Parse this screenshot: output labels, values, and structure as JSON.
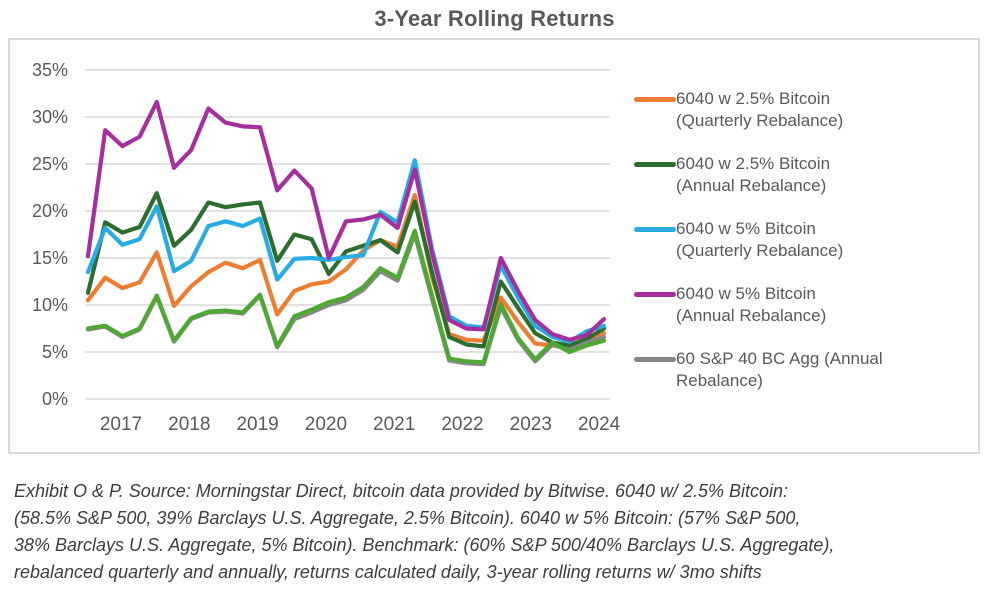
{
  "title": "3-Year Rolling Returns",
  "footer": {
    "lines": [
      "Exhibit O & P. Source: Morningstar Direct, bitcoin data provided by Bitwise. 6040 w/ 2.5% Bitcoin:",
      "(58.5% S&P 500, 39% Barclays U.S. Aggregate, 2.5% Bitcoin). 6040 w 5% Bitcoin: (57% S&P 500,",
      "38% Barclays U.S. Aggregate, 5% Bitcoin). Benchmark: (60% S&P 500/40% Barclays U.S. Aggregate),",
      "rebalanced quarterly and annually, returns calculated daily, 3-year rolling returns w/ 3mo shifts"
    ]
  },
  "chart_data": {
    "type": "line",
    "title": "3-Year Rolling Returns",
    "x_axis": {
      "labels": [
        "2017",
        "2018",
        "2019",
        "2020",
        "2021",
        "2022",
        "2023",
        "2024"
      ]
    },
    "y_axis": {
      "ticks": [
        "0%",
        "5%",
        "10%",
        "15%",
        "20%",
        "25%",
        "30%",
        "35%"
      ],
      "min": 0,
      "max": 35,
      "step": 5,
      "unit": "%"
    },
    "grid": true,
    "legend_position": "right",
    "points_per_year": 4,
    "note": "quarterly (3-month shift) rolling 3-year return observations, 2017 through mid-2024",
    "series": [
      {
        "name": "6040 w 2.5% Bitcoin (Quarterly Rebalance)",
        "color": "#ED7D31",
        "values": [
          10.5,
          12.9,
          11.8,
          12.4,
          15.6,
          9.9,
          12.0,
          13.5,
          14.5,
          13.9,
          14.8,
          9.0,
          11.5,
          12.2,
          12.5,
          13.8,
          15.8,
          16.9,
          16.2,
          21.7,
          13.0,
          6.9,
          6.3,
          6.2,
          10.8,
          8.2,
          5.9,
          5.7,
          5.5,
          6.2,
          7.0
        ]
      },
      {
        "name": "6040 w 2.5% Bitcoin (Annual Rebalance)",
        "color": "#2D6E2F",
        "values": [
          11.3,
          18.8,
          17.7,
          18.3,
          21.9,
          16.3,
          18.0,
          20.9,
          20.4,
          20.7,
          20.9,
          14.7,
          17.5,
          17.0,
          13.3,
          15.7,
          16.3,
          16.9,
          15.6,
          21.0,
          13.5,
          6.6,
          5.8,
          5.6,
          12.5,
          9.7,
          7.0,
          6.0,
          5.7,
          6.4,
          7.5
        ]
      },
      {
        "name": "6040 w 5% Bitcoin (Quarterly Rebalance)",
        "color": "#29ABE2",
        "values": [
          13.5,
          18.2,
          16.4,
          17.0,
          20.5,
          13.6,
          14.7,
          18.4,
          18.9,
          18.4,
          19.2,
          12.7,
          14.9,
          15.0,
          14.8,
          15.1,
          15.3,
          19.9,
          18.8,
          25.4,
          16.0,
          8.8,
          7.8,
          7.6,
          14.2,
          10.8,
          7.8,
          6.6,
          6.1,
          7.2,
          7.8
        ]
      },
      {
        "name": "6040 w 5% Bitcoin (Annual Rebalance)",
        "color": "#A42F9D",
        "values": [
          15.2,
          28.6,
          26.9,
          27.9,
          31.6,
          24.6,
          26.5,
          30.9,
          29.4,
          29.0,
          28.9,
          22.2,
          24.3,
          22.4,
          15.0,
          18.9,
          19.1,
          19.6,
          18.2,
          24.4,
          15.5,
          8.4,
          7.5,
          7.4,
          15.0,
          11.5,
          8.4,
          6.9,
          6.3,
          6.8,
          8.5
        ]
      },
      {
        "name": "60 S&P 40 BC Agg (Annual Rebalance)",
        "color": "#878787",
        "values": [
          7.4,
          7.7,
          6.6,
          7.4,
          10.9,
          6.1,
          8.5,
          9.2,
          9.3,
          9.1,
          11.0,
          5.5,
          8.5,
          9.2,
          10.0,
          10.5,
          11.6,
          13.6,
          12.6,
          17.5,
          10.7,
          4.1,
          3.8,
          3.7,
          9.8,
          6.3,
          4.0,
          5.8,
          5.2,
          6.0,
          6.6
        ]
      },
      {
        "name": "60 S&P 40 BC Agg (unlabeled green line)",
        "color": "#50A834",
        "values": [
          7.5,
          7.8,
          6.7,
          7.5,
          11.0,
          6.2,
          8.6,
          9.3,
          9.4,
          9.2,
          11.1,
          5.6,
          8.8,
          9.5,
          10.3,
          10.8,
          11.9,
          13.9,
          12.9,
          17.9,
          11.0,
          4.3,
          4.0,
          3.9,
          10.1,
          6.5,
          4.2,
          6.0,
          5.0,
          5.7,
          6.2
        ]
      }
    ],
    "legend": [
      {
        "line1": "6040 w 2.5% Bitcoin",
        "line2": "(Quarterly Rebalance)",
        "color": "#ED7D31"
      },
      {
        "line1": "6040 w 2.5% Bitcoin",
        "line2": "(Annual Rebalance)",
        "color": "#2D6E2F"
      },
      {
        "line1": "6040 w 5% Bitcoin",
        "line2": "(Quarterly Rebalance)",
        "color": "#29ABE2"
      },
      {
        "line1": "6040 w 5% Bitcoin",
        "line2": "(Annual Rebalance)",
        "color": "#A42F9D"
      },
      {
        "line1": "60 S&P 40 BC Agg (Annual",
        "line2": "Rebalance)",
        "color": "#878787"
      }
    ]
  }
}
